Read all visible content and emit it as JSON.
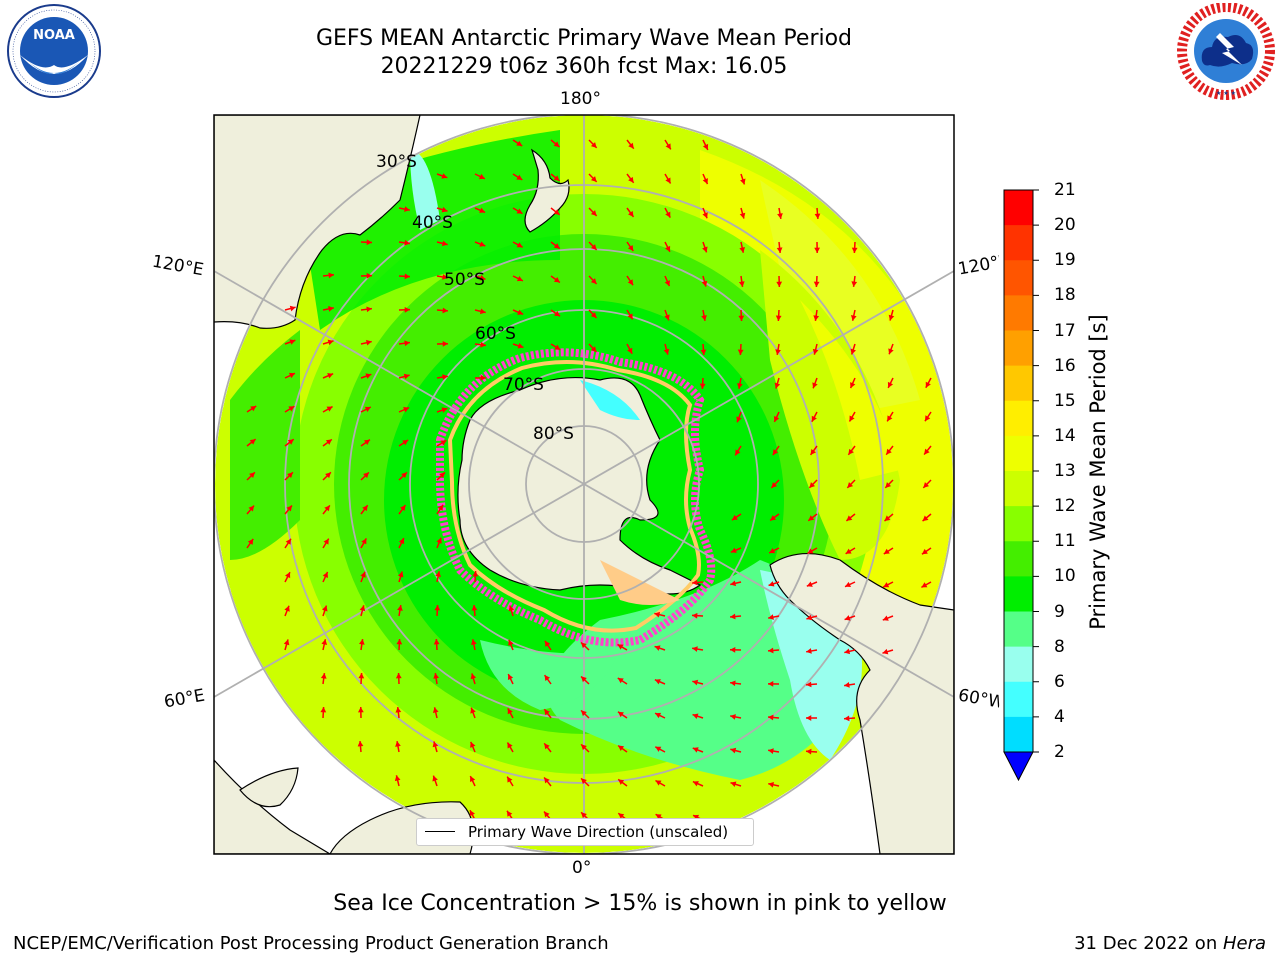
{
  "title_line1": "GEFS MEAN Antarctic Primary Wave Mean Period",
  "title_line2": "20221229 t06z 360h fcst   Max: 16.05",
  "colorbar": {
    "label": "Primary Wave Mean Period [s]",
    "ticks": [
      "21",
      "20",
      "19",
      "18",
      "17",
      "16",
      "15",
      "14",
      "13",
      "12",
      "11",
      "10",
      "9",
      "8",
      "6",
      "4",
      "2"
    ],
    "colors": [
      "#ff0000",
      "#ff3300",
      "#ff5500",
      "#ff7a00",
      "#ffa000",
      "#ffc800",
      "#ffee00",
      "#eeff00",
      "#ccff00",
      "#88ff00",
      "#44ee00",
      "#00ee00",
      "#55ff88",
      "#99ffee",
      "#44ffff",
      "#00ddff",
      "#0088ff",
      "#0044ff"
    ],
    "extend_color": "#0000ff"
  },
  "longitude_labels": {
    "top": "180°",
    "bottom": "0°",
    "upper_left": "120°E",
    "lower_left": "60°E",
    "upper_right": "120°W",
    "lower_right": "60°W"
  },
  "latitude_labels": [
    "30°S",
    "40°S",
    "50°S",
    "60°S",
    "70°S",
    "80°S"
  ],
  "legend_text": "Primary Wave Direction (unscaled)",
  "subnote": "Sea Ice Concentration > 15% is shown in pink to yellow",
  "footer_left": "NCEP/EMC/Verification Post Processing Product Generation Branch",
  "footer_right_date": "31 Dec 2022 on ",
  "footer_right_machine": "Hera",
  "logos": {
    "left": {
      "name": "noaa-logo",
      "text": "NOAA"
    },
    "right": {
      "name": "nws-logo",
      "text": "NATIONAL WEATHER SERVICE"
    }
  },
  "colors": {
    "land": "#efefdc",
    "ice_edge": "#ff44cc",
    "arrow": "#ff0000",
    "grid": "#b0b0b0"
  }
}
